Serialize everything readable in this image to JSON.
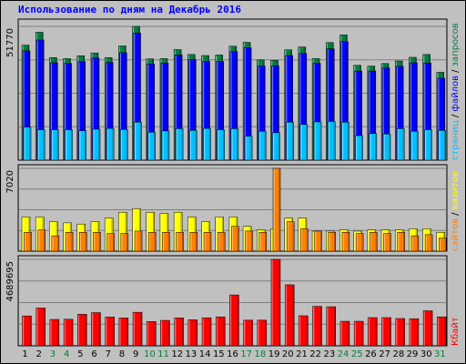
{
  "chart_data": {
    "title": "Использование по дням на Декабрь 2016",
    "days": [
      "1",
      "2",
      "3",
      "4",
      "5",
      "6",
      "7",
      "8",
      "9",
      "10",
      "11",
      "12",
      "13",
      "14",
      "15",
      "16",
      "17",
      "18",
      "19",
      "20",
      "21",
      "22",
      "23",
      "24",
      "25",
      "26",
      "27",
      "28",
      "29",
      "30",
      "31"
    ],
    "weekend_days": [
      "3",
      "4",
      "10",
      "11",
      "17",
      "18",
      "24",
      "25",
      "31"
    ],
    "colors": {
      "background": "#c0c0c0",
      "title": "#0000ff",
      "border": "#000000",
      "hits": "#008040",
      "files": "#0000ff",
      "pages": "#00c0ff",
      "visits": "#ffff00",
      "sites": "#ff8000",
      "kbytes": "#ff0000",
      "weekday_label": "#000000",
      "weekend_label": "#008040"
    },
    "panels": [
      {
        "type": "bar",
        "ymax_label": "51770",
        "ymax": 51770,
        "series": [
          {
            "name": "запросов",
            "key": "hits",
            "values": [
              44500,
              49500,
              39700,
              39300,
              40400,
              41500,
              39700,
              44200,
              51770,
              39200,
              39300,
              42800,
              40900,
              40500,
              40700,
              44100,
              45600,
              38800,
              38600,
              42700,
              43800,
              39300,
              45500,
              48500,
              36700,
              36400,
              37400,
              38400,
              39800,
              40900,
              34000
            ]
          },
          {
            "name": "файлов",
            "key": "files",
            "values": [
              42300,
              46500,
              37700,
              37500,
              38100,
              39500,
              37800,
              41600,
              49200,
              37200,
              37600,
              40700,
              38900,
              38200,
              38200,
              42000,
              43500,
              36400,
              36500,
              40500,
              41300,
              37500,
              43100,
              45900,
              34500,
              34500,
              35700,
              36300,
              37700,
              37600,
              31700
            ]
          },
          {
            "name": "страниц",
            "key": "pages",
            "values": [
              12800,
              11800,
              11800,
              11800,
              11400,
              12000,
              12300,
              11900,
              14700,
              10800,
              11300,
              12200,
              11500,
              12300,
              11800,
              12200,
              9300,
              11200,
              10600,
              14700,
              13800,
              14800,
              15000,
              14700,
              9500,
              10300,
              10100,
              12200,
              11200,
              11800,
              11500
            ]
          }
        ]
      },
      {
        "type": "bar",
        "ymax_label": "7020",
        "ymax": 7020,
        "series": [
          {
            "name": "визитов",
            "key": "visits",
            "values": [
              2900,
              2900,
              2500,
              2400,
              2300,
              2500,
              2800,
              3300,
              3600,
              3300,
              3200,
              3300,
              2900,
              2500,
              2900,
              2900,
              2100,
              1800,
              1900,
              2800,
              2800,
              1700,
              1700,
              1800,
              1700,
              1800,
              1800,
              1800,
              1900,
              1900,
              1600
            ]
          },
          {
            "name": "сайтов",
            "key": "sites",
            "values": [
              1600,
              1800,
              1300,
              1600,
              1600,
              1600,
              1500,
              1500,
              1700,
              1600,
              1600,
              1600,
              1600,
              1600,
              1600,
              2100,
              1700,
              1600,
              7020,
              2500,
              1900,
              1700,
              1600,
              1600,
              1500,
              1600,
              1500,
              1600,
              1300,
              1400,
              1100
            ]
          }
        ]
      },
      {
        "type": "bar",
        "ymax_label": "4689695",
        "ymax": 4689695,
        "series": [
          {
            "name": "Кбайт",
            "key": "kbytes",
            "values": [
              1620000,
              2050000,
              1430000,
              1440000,
              1710000,
              1800000,
              1560000,
              1510000,
              1820000,
              1320000,
              1380000,
              1510000,
              1410000,
              1520000,
              1570000,
              2760000,
              1390000,
              1390000,
              4689695,
              3310000,
              1630000,
              2140000,
              2120000,
              1330000,
              1330000,
              1530000,
              1530000,
              1480000,
              1470000,
              1900000,
              1570000
            ]
          }
        ]
      }
    ]
  }
}
